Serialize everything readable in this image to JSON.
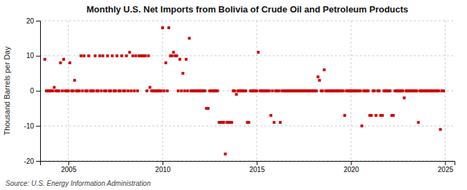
{
  "chart_data": {
    "type": "scatter",
    "title": "Monthly U.S. Net Imports from Bolivia of Crude Oil and Petroleum Products",
    "ylabel": "Thousand Barrels per Day",
    "annotations": [
      "Source: U.S. Energy Information Administration"
    ],
    "color": "#cc0000",
    "marker": "square",
    "grid": true,
    "xlim": [
      2003.5,
      2025.5
    ],
    "xticks": [
      2005,
      2010,
      2015,
      2020,
      2025
    ],
    "ylim": [
      -20,
      20
    ],
    "yticks": [
      -20,
      -10,
      0,
      10,
      20
    ],
    "x": [
      2003.75,
      2003.83,
      2003.92,
      2004.0,
      2004.08,
      2004.17,
      2004.25,
      2004.33,
      2004.42,
      2004.5,
      2004.58,
      2004.67,
      2004.75,
      2004.83,
      2004.92,
      2005.0,
      2005.08,
      2005.17,
      2005.25,
      2005.33,
      2005.42,
      2005.5,
      2005.58,
      2005.67,
      2005.75,
      2005.83,
      2005.92,
      2006.0,
      2006.08,
      2006.17,
      2006.25,
      2006.33,
      2006.42,
      2006.5,
      2006.58,
      2006.67,
      2006.75,
      2006.83,
      2006.92,
      2007.0,
      2007.08,
      2007.17,
      2007.25,
      2007.33,
      2007.42,
      2007.5,
      2007.58,
      2007.67,
      2007.75,
      2007.83,
      2007.92,
      2008.0,
      2008.08,
      2008.17,
      2008.25,
      2008.33,
      2008.42,
      2008.5,
      2008.58,
      2008.67,
      2008.75,
      2008.83,
      2008.92,
      2009.0,
      2009.08,
      2009.17,
      2009.25,
      2009.33,
      2009.42,
      2009.5,
      2009.58,
      2009.67,
      2009.75,
      2009.83,
      2009.92,
      2010.0,
      2010.08,
      2010.17,
      2010.25,
      2010.33,
      2010.42,
      2010.5,
      2010.58,
      2010.67,
      2010.75,
      2010.83,
      2010.92,
      2011.0,
      2011.08,
      2011.17,
      2011.25,
      2011.33,
      2011.42,
      2011.5,
      2011.58,
      2011.67,
      2011.75,
      2011.83,
      2011.92,
      2012.0,
      2012.08,
      2012.17,
      2012.25,
      2012.33,
      2012.42,
      2012.5,
      2012.58,
      2012.67,
      2012.75,
      2012.83,
      2012.92,
      2013.0,
      2013.08,
      2013.17,
      2013.25,
      2013.33,
      2013.42,
      2013.5,
      2013.58,
      2013.67,
      2013.75,
      2013.83,
      2013.92,
      2014.0,
      2014.08,
      2014.17,
      2014.25,
      2014.33,
      2014.42,
      2014.5,
      2014.58,
      2014.67,
      2014.75,
      2014.83,
      2014.92,
      2015.0,
      2015.08,
      2015.17,
      2015.25,
      2015.33,
      2015.42,
      2015.5,
      2015.58,
      2015.67,
      2015.75,
      2015.83,
      2015.92,
      2016.0,
      2016.08,
      2016.17,
      2016.25,
      2016.33,
      2016.42,
      2016.5,
      2016.58,
      2016.67,
      2016.75,
      2016.83,
      2016.92,
      2017.0,
      2017.08,
      2017.17,
      2017.25,
      2017.33,
      2017.42,
      2017.5,
      2017.58,
      2017.67,
      2017.75,
      2017.83,
      2017.92,
      2018.0,
      2018.08,
      2018.17,
      2018.25,
      2018.33,
      2018.42,
      2018.5,
      2018.58,
      2018.67,
      2018.75,
      2018.83,
      2018.92,
      2019.0,
      2019.08,
      2019.17,
      2019.25,
      2019.33,
      2019.42,
      2019.5,
      2019.58,
      2019.67,
      2019.75,
      2019.83,
      2019.92,
      2020.0,
      2020.08,
      2020.17,
      2020.25,
      2020.33,
      2020.42,
      2020.5,
      2020.58,
      2020.67,
      2020.75,
      2020.83,
      2020.92,
      2021.0,
      2021.08,
      2021.17,
      2021.25,
      2021.33,
      2021.42,
      2021.5,
      2021.58,
      2021.67,
      2021.75,
      2021.83,
      2021.92,
      2022.0,
      2022.08,
      2022.17,
      2022.25,
      2022.33,
      2022.42,
      2022.5,
      2022.58,
      2022.67,
      2022.75,
      2022.83,
      2022.92,
      2023.0,
      2023.08,
      2023.17,
      2023.25,
      2023.33,
      2023.42,
      2023.5,
      2023.58,
      2023.67,
      2023.75,
      2023.83,
      2023.92,
      2024.0,
      2024.08,
      2024.17,
      2024.25,
      2024.33,
      2024.42,
      2024.5,
      2024.58,
      2024.67,
      2024.75,
      2024.83,
      2024.92
    ],
    "values": [
      9,
      0,
      0,
      0,
      0,
      0,
      1,
      0,
      0,
      0,
      8,
      0,
      9,
      0,
      0,
      0,
      8,
      0,
      0,
      3,
      0,
      0,
      0,
      10,
      0,
      10,
      0,
      0,
      10,
      0,
      0,
      0,
      10,
      0,
      0,
      10,
      0,
      10,
      0,
      0,
      10,
      0,
      0,
      10,
      0,
      0,
      10,
      0,
      0,
      10,
      0,
      0,
      10,
      0,
      11,
      0,
      10,
      0,
      10,
      0,
      10,
      10,
      10,
      10,
      10,
      0,
      10,
      1,
      0,
      0,
      0,
      0,
      0,
      0,
      0,
      18,
      0,
      8,
      0,
      18,
      10,
      10,
      11,
      10,
      10,
      0,
      9,
      0,
      5,
      0,
      9,
      0,
      15,
      0,
      0,
      0,
      0,
      0,
      0,
      0,
      0,
      0,
      0,
      -5,
      -5,
      0,
      0,
      0,
      0,
      0,
      0,
      -9,
      -9,
      -9,
      -9,
      -18,
      -9,
      -9,
      -9,
      -9,
      0,
      0,
      -1,
      0,
      0,
      0,
      0,
      0,
      0,
      -9,
      -9,
      0,
      0,
      0,
      0,
      0,
      11,
      0,
      0,
      0,
      0,
      0,
      0,
      0,
      -7,
      0,
      -9,
      0,
      0,
      0,
      -9,
      0,
      0,
      0,
      0,
      0,
      0,
      0,
      0,
      0,
      0,
      0,
      0,
      0,
      0,
      0,
      0,
      0,
      0,
      0,
      0,
      0,
      0,
      0,
      4,
      3,
      0,
      0,
      6,
      0,
      0,
      0,
      0,
      0,
      0,
      0,
      0,
      0,
      0,
      0,
      0,
      -7,
      0,
      0,
      0,
      0,
      0,
      0,
      0,
      0,
      0,
      0,
      -10,
      0,
      0,
      0,
      0,
      -7,
      -7,
      0,
      0,
      -7,
      0,
      0,
      -7,
      -7,
      0,
      0,
      0,
      0,
      0,
      -7,
      -7,
      0,
      0,
      0,
      0,
      0,
      0,
      -2,
      0,
      0,
      0,
      0,
      0,
      0,
      0,
      0,
      -9,
      0,
      0,
      0,
      0,
      0,
      0,
      0,
      0,
      0,
      0,
      0,
      0,
      0,
      -11,
      0,
      0
    ]
  }
}
